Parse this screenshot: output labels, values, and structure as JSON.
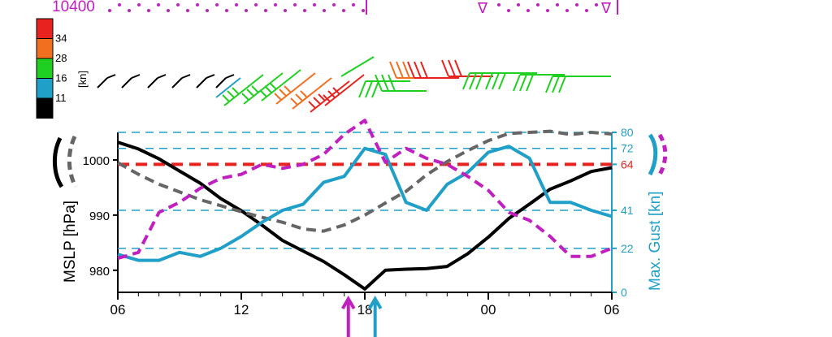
{
  "top_strip": {
    "left_label": "10400",
    "color": "#c020c0",
    "end_glyph": "∇"
  },
  "wind_legend": {
    "unit": "[kn]",
    "levels": [
      {
        "label": "34",
        "color": "#e8231f"
      },
      {
        "label": "28",
        "color": "#f07020"
      },
      {
        "label": "16",
        "color": "#20d020"
      },
      {
        "label": "11",
        "color": "#20a0c8"
      },
      {
        "label": "",
        "color": "#000000"
      }
    ]
  },
  "chart_data": {
    "type": "line",
    "x_ticks": [
      "06",
      "12",
      "18",
      "00",
      "06"
    ],
    "x_hours": [
      6,
      12,
      18,
      24,
      30
    ],
    "ylabel_left": "MSLP [hPa]",
    "ylabel_right": "Max. Gust [kn]",
    "ylim_left": [
      976,
      1005
    ],
    "yticks_left": [
      980,
      990,
      1000
    ],
    "ylim_right": [
      0,
      80
    ],
    "yticks_right": [
      {
        "value": 0,
        "label": "0",
        "color": "#20a0c8"
      },
      {
        "value": 22,
        "label": "22",
        "color": "#20a0c8"
      },
      {
        "value": 41,
        "label": "41",
        "color": "#20a0c8"
      },
      {
        "value": 64,
        "label": "64",
        "color": "#e8231f"
      },
      {
        "value": 72,
        "label": "72",
        "color": "#20a0c8"
      },
      {
        "value": 80,
        "label": "80",
        "color": "#20a0c8"
      }
    ],
    "dashed_reference_lines": [
      22,
      41,
      72,
      80
    ],
    "red_reference_line": 64,
    "series": [
      {
        "key": "mslp_black",
        "axis": "left",
        "color": "#000000",
        "dashed": false,
        "x": [
          6,
          7,
          8,
          9,
          10,
          11,
          12,
          13,
          14,
          15,
          16,
          17,
          18,
          19,
          20,
          21,
          22,
          23,
          24,
          25,
          26,
          27,
          28,
          29,
          30
        ],
        "y": [
          1003.2,
          1002.0,
          1000.2,
          998.0,
          995.8,
          993.0,
          990.8,
          988.2,
          985.4,
          983.5,
          981.6,
          979.2,
          976.6,
          980.0,
          980.2,
          980.3,
          980.7,
          983.0,
          986.0,
          989.4,
          992.0,
          994.7,
          996.2,
          997.9,
          998.6
        ]
      },
      {
        "key": "mslp_gray",
        "axis": "left",
        "color": "#666666",
        "dashed": true,
        "x": [
          6,
          7,
          8,
          9,
          10,
          11,
          12,
          13,
          14,
          15,
          16,
          17,
          18,
          19,
          20,
          21,
          22,
          23,
          24,
          25,
          26,
          27,
          28,
          29,
          30
        ],
        "y": [
          999.5,
          997.4,
          995.6,
          994.2,
          992.8,
          991.7,
          990.6,
          989.6,
          988.7,
          987.5,
          987.1,
          988.2,
          990.0,
          992.2,
          994.3,
          997.3,
          999.7,
          1001.7,
          1003.5,
          1004.8,
          1005.0,
          1005.2,
          1004.6,
          1005.0,
          1004.7
        ]
      },
      {
        "key": "gust_blue",
        "axis": "right",
        "color": "#20a0c8",
        "dashed": false,
        "x": [
          6,
          7,
          8,
          9,
          10,
          11,
          12,
          13,
          14,
          15,
          16,
          17,
          18,
          19,
          20,
          21,
          22,
          23,
          24,
          25,
          26,
          27,
          28,
          29,
          30
        ],
        "y": [
          19,
          16,
          16,
          20,
          18,
          22,
          28,
          35,
          41,
          44,
          55,
          58,
          72,
          69,
          45,
          41,
          54,
          60,
          70,
          73,
          67,
          45,
          45,
          41,
          38
        ]
      },
      {
        "key": "gust_magenta",
        "axis": "right",
        "color": "#c020c0",
        "dashed": true,
        "x": [
          6,
          7,
          8,
          9,
          10,
          11,
          12,
          13,
          14,
          15,
          16,
          17,
          18,
          19,
          20,
          21,
          22,
          23,
          24,
          25,
          26,
          27,
          28,
          29,
          30
        ],
        "y": [
          17,
          20,
          40,
          45,
          52,
          57,
          59,
          64,
          62,
          64,
          69,
          79,
          86,
          65,
          72,
          67,
          64,
          58,
          51,
          40,
          36,
          28,
          18,
          18,
          22
        ]
      }
    ],
    "arrows": [
      {
        "x": 17.2,
        "color": "#c020c0"
      },
      {
        "x": 18.5,
        "color": "#20a0c8"
      }
    ]
  }
}
